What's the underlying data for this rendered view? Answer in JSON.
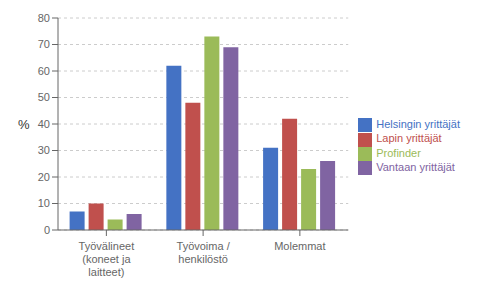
{
  "chart_data": {
    "type": "bar",
    "categories": [
      "Työvälineet\n(koneet ja\nlaitteet)",
      "Työvoima /\nhenkilöstö",
      "Molemmat"
    ],
    "series": [
      {
        "name": "Helsingin yrittäjät",
        "color": "#4472C4",
        "values": [
          7,
          62,
          31
        ]
      },
      {
        "name": "Lapin yrittäjät",
        "color": "#C0504D",
        "values": [
          10,
          48,
          42
        ]
      },
      {
        "name": "Profinder",
        "color": "#9BBB59",
        "values": [
          4,
          73,
          23
        ]
      },
      {
        "name": "Vantaan yrittäjät",
        "color": "#8064A2",
        "values": [
          6,
          69,
          26
        ]
      }
    ],
    "ylabel": "%",
    "ylim": [
      0,
      80
    ],
    "yticks": [
      0,
      10,
      20,
      30,
      40,
      50,
      60,
      70,
      80
    ],
    "grid": true,
    "legend": "right"
  }
}
